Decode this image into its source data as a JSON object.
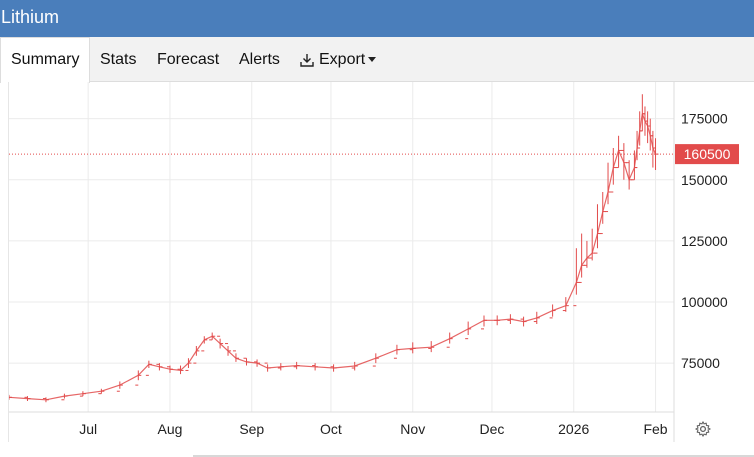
{
  "window": {
    "title": "Lithium"
  },
  "tabs": [
    {
      "label": "Summary",
      "active": true
    },
    {
      "label": "Stats"
    },
    {
      "label": "Forecast"
    },
    {
      "label": "Alerts"
    },
    {
      "label": "Export",
      "icon": "download-icon",
      "dropdown": true
    }
  ],
  "colors": {
    "header": "#4a7ebb",
    "series": "#e24b4b",
    "grid": "#ebebeb"
  },
  "chart_data": {
    "type": "line",
    "style": "ohlc",
    "ylim": [
      55000,
      190000
    ],
    "yticks": [
      75000,
      100000,
      125000,
      150000,
      175000
    ],
    "y_tick_labels": [
      "75000",
      "100000",
      "125000",
      "150000",
      "175000"
    ],
    "x_tick_labels": [
      "Jul",
      "Aug",
      "Sep",
      "Oct",
      "Nov",
      "Dec",
      "2026",
      "Feb"
    ],
    "x_tick_dates": [
      "2025-07-01",
      "2025-08-01",
      "2025-09-01",
      "2025-10-01",
      "2025-11-01",
      "2025-12-01",
      "2026-01-01",
      "2026-02-01"
    ],
    "xlim": [
      "2025-06-01",
      "2026-02-08"
    ],
    "last_price": 160500,
    "last_price_label": "160500",
    "grid": true,
    "series": [
      {
        "x": [
          "2025-06-01",
          "2025-06-08",
          "2025-06-15",
          "2025-06-22",
          "2025-06-29",
          "2025-07-06",
          "2025-07-13",
          "2025-07-20",
          "2025-07-24",
          "2025-07-28",
          "2025-08-01",
          "2025-08-05",
          "2025-08-08",
          "2025-08-11",
          "2025-08-14",
          "2025-08-17",
          "2025-08-20",
          "2025-08-23",
          "2025-08-26",
          "2025-08-30",
          "2025-09-03",
          "2025-09-07",
          "2025-09-12",
          "2025-09-18",
          "2025-09-25",
          "2025-10-02",
          "2025-10-10",
          "2025-10-18",
          "2025-10-26",
          "2025-11-01",
          "2025-11-08",
          "2025-11-15",
          "2025-11-22",
          "2025-11-28",
          "2025-12-03",
          "2025-12-08",
          "2025-12-13",
          "2025-12-18",
          "2025-12-24",
          "2025-12-29",
          "2026-01-02",
          "2026-01-04",
          "2026-01-06",
          "2026-01-08",
          "2026-01-10",
          "2026-01-12",
          "2026-01-14",
          "2026-01-16",
          "2026-01-18",
          "2026-01-20",
          "2026-01-22",
          "2026-01-24",
          "2026-01-25",
          "2026-01-26",
          "2026-01-27",
          "2026-01-28",
          "2026-01-29",
          "2026-01-30",
          "2026-01-31",
          "2026-02-01"
        ],
        "values": [
          61000,
          60500,
          60000,
          61500,
          62500,
          63500,
          66000,
          70000,
          74500,
          73500,
          72500,
          72000,
          75000,
          80000,
          84500,
          86000,
          83000,
          80000,
          77000,
          75500,
          75000,
          73000,
          73500,
          74000,
          73500,
          73000,
          73800,
          77000,
          80500,
          81000,
          81500,
          85000,
          89000,
          92500,
          92500,
          93000,
          92000,
          93500,
          96500,
          98500,
          108000,
          115000,
          118000,
          120000,
          128000,
          137000,
          145000,
          155000,
          162000,
          157000,
          150000,
          155000,
          163000,
          170000,
          177000,
          174000,
          172000,
          168000,
          163000,
          160500
        ],
        "highs": [
          62000,
          61500,
          61000,
          62500,
          63500,
          64500,
          67500,
          72000,
          76000,
          75000,
          74000,
          74000,
          77000,
          82000,
          86000,
          87500,
          85000,
          82000,
          79000,
          77000,
          76500,
          74500,
          75000,
          75500,
          75000,
          74500,
          75500,
          79000,
          82500,
          83500,
          84000,
          87500,
          92000,
          94500,
          94500,
          95000,
          94000,
          96000,
          99000,
          102000,
          122000,
          128000,
          125000,
          130000,
          140000,
          145000,
          157000,
          163000,
          168000,
          165000,
          158000,
          162000,
          170000,
          178000,
          185000,
          180000,
          178000,
          175000,
          170000,
          167000
        ],
        "lows": [
          60000,
          59500,
          59000,
          60500,
          61500,
          62500,
          64500,
          68000,
          73000,
          72000,
          71000,
          70500,
          73000,
          78000,
          83000,
          84500,
          81000,
          78000,
          75500,
          74000,
          73500,
          71500,
          72000,
          72500,
          72000,
          71500,
          72000,
          75000,
          78500,
          79000,
          79500,
          83000,
          86500,
          90000,
          90500,
          91000,
          90000,
          91000,
          94000,
          96000,
          103000,
          110000,
          114000,
          117000,
          122000,
          132000,
          140000,
          148000,
          155000,
          150000,
          146000,
          150000,
          158000,
          164000,
          170000,
          168000,
          165000,
          162000,
          155000,
          154000
        ]
      }
    ]
  }
}
